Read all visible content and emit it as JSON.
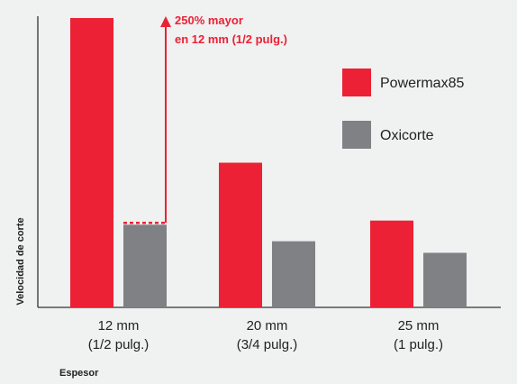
{
  "chart_data": {
    "type": "bar",
    "categories": [
      [
        "12 mm",
        "(1/2 pulg.)"
      ],
      [
        "20 mm",
        "(3/4 pulg.)"
      ],
      [
        "25 mm",
        "(1 pulg.)"
      ]
    ],
    "series": [
      {
        "name": "Powermax85",
        "values": [
          3.5,
          1.75,
          1.05
        ],
        "color": "#ec2135"
      },
      {
        "name": "Oxicorte",
        "values": [
          1.0,
          0.8,
          0.66
        ],
        "color": "#808184"
      }
    ],
    "ylim": [
      0,
      3.6
    ],
    "xlabel": "Espesor",
    "ylabel": "Velocidad de corte",
    "annotation": {
      "lines": [
        "250% mayor",
        "en 12 mm (1/2 pulg.)"
      ],
      "category_index": 0
    },
    "legend_position": "right",
    "grid": false
  }
}
